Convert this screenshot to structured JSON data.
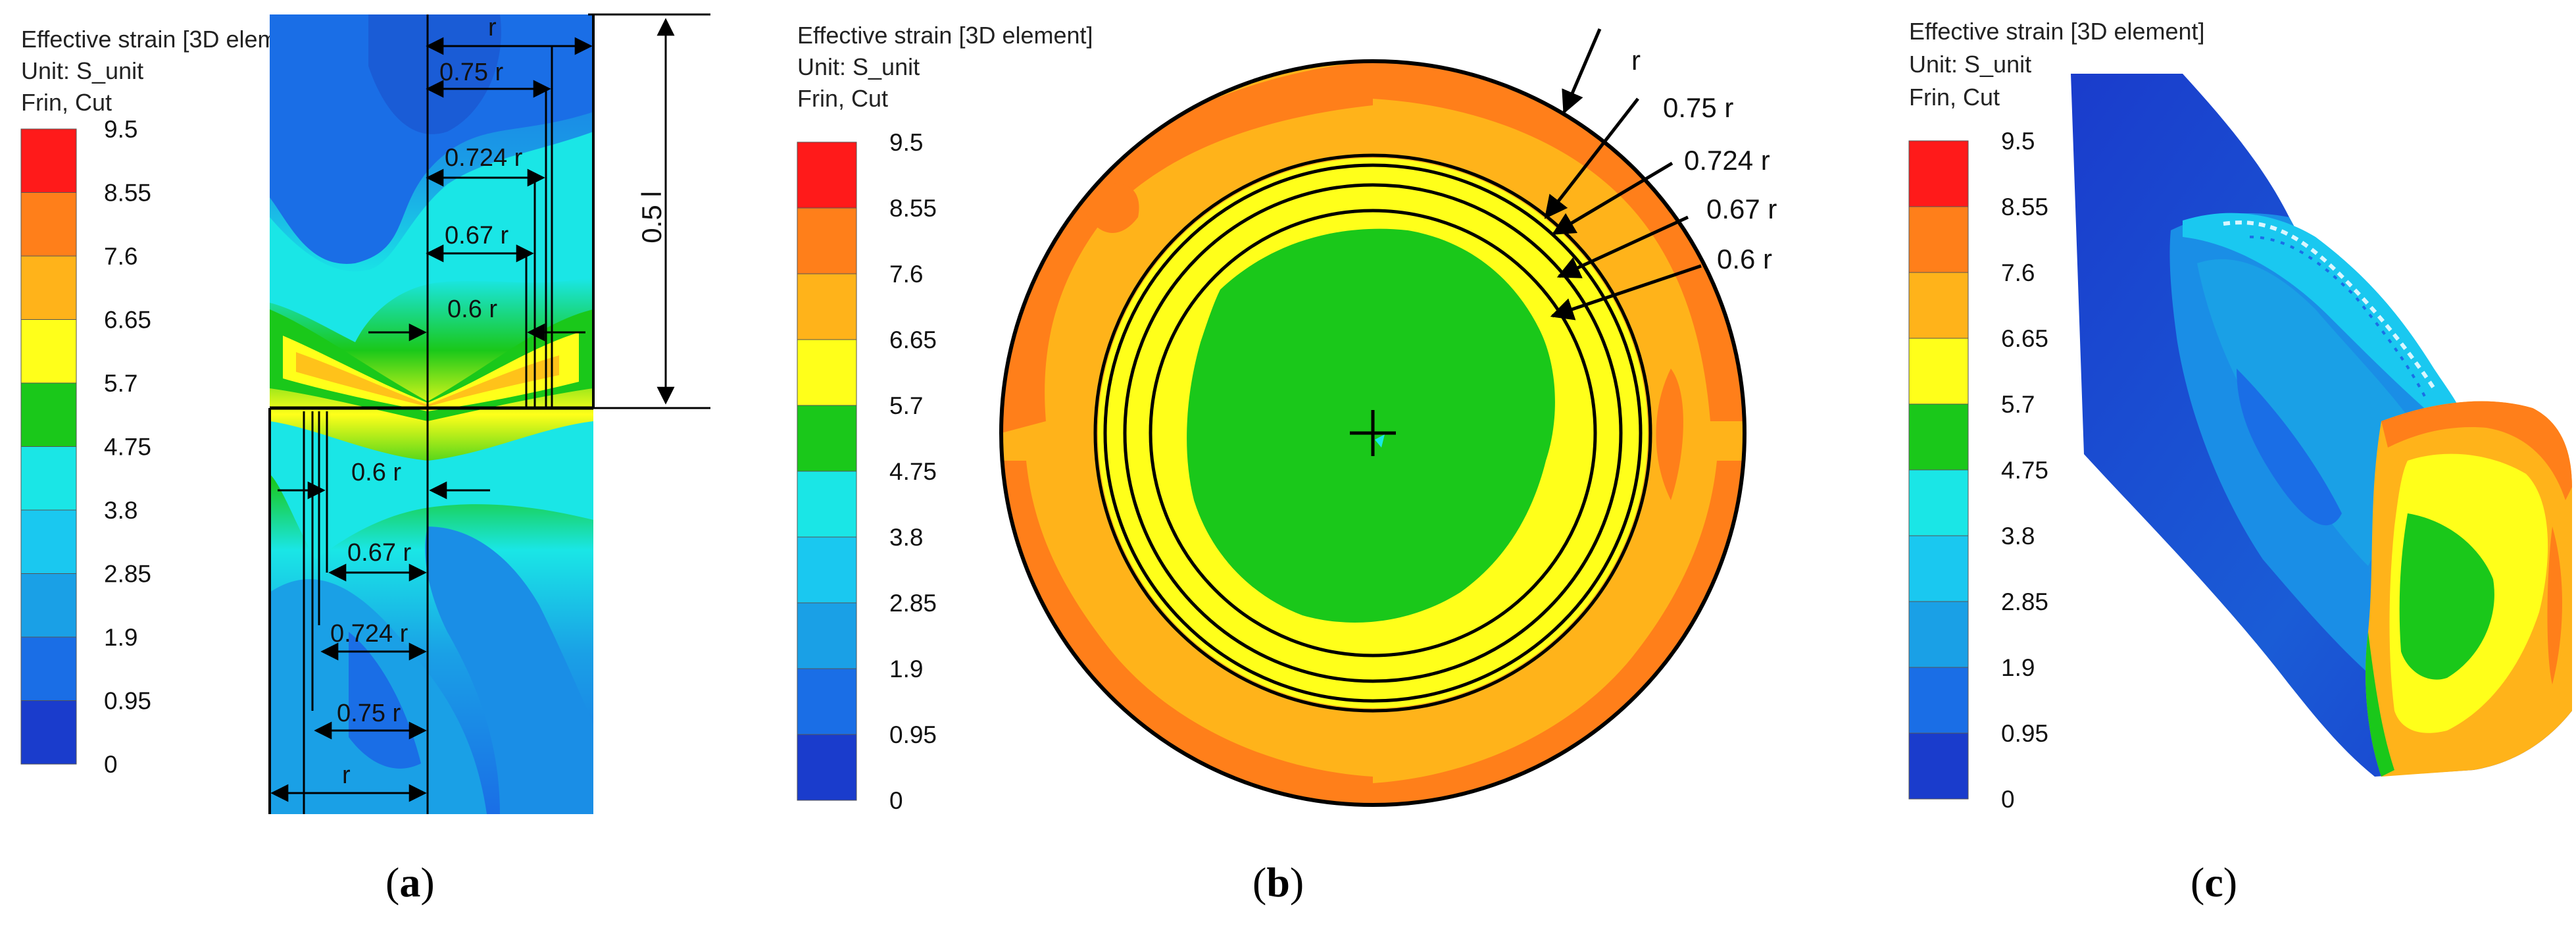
{
  "legend_header": {
    "title": "Effective strain [3D element]",
    "unit": "Unit: S_unit",
    "source": "Frin, Cut"
  },
  "legend": {
    "ticks": [
      "9.5",
      "8.55",
      "7.6",
      "6.65",
      "5.7",
      "4.75",
      "3.8",
      "2.85",
      "1.9",
      "0.95",
      "0"
    ],
    "colors": [
      "#ff1a1a",
      "#ff7f1a",
      "#ffb31a",
      "#ffff1a",
      "#1ac81a",
      "#1ae6e6",
      "#1ac8f0",
      "#1aa0e6",
      "#1a6ee6",
      "#1a3ccc"
    ]
  },
  "panel_a": {
    "caption_open": "(",
    "caption_letter": "a",
    "caption_close": ")",
    "upper_labels": {
      "r": "r",
      "r075": "0.75 r",
      "r0724": "0.724 r",
      "r067": "0.67 r",
      "r06": "0.6 r"
    },
    "length_label": "0.5 l",
    "lower_labels": {
      "r06": "0.6 r",
      "r067": "0.67 r",
      "r0724": "0.724 r",
      "r075": "0.75 r",
      "r": "r"
    }
  },
  "panel_b": {
    "caption_open": "(",
    "caption_letter": "b",
    "caption_close": ")",
    "labels": {
      "r": "r",
      "r075": "0.75 r",
      "r0724": "0.724 r",
      "r067": "0.67 r",
      "r06": "0.6 r"
    }
  },
  "panel_c": {
    "caption_open": "(",
    "caption_letter": "c",
    "caption_close": ")"
  }
}
